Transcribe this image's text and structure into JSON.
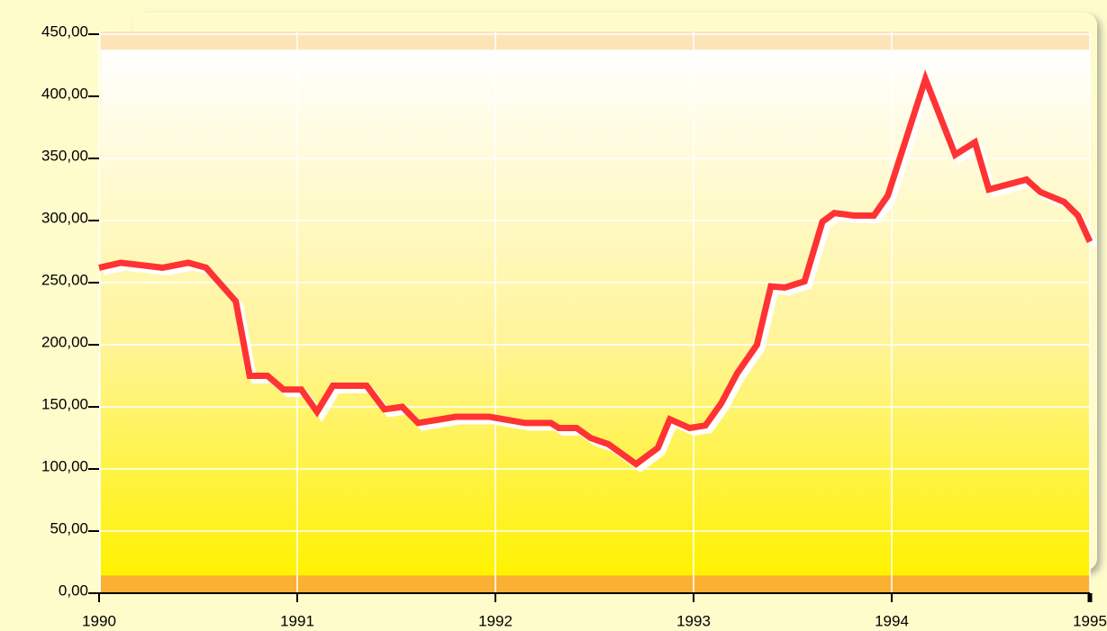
{
  "chart_data": {
    "type": "line",
    "x": [
      1990.0,
      1990.11,
      1990.32,
      1990.45,
      1990.54,
      1990.69,
      1990.76,
      1990.85,
      1990.93,
      1991.02,
      1991.1,
      1991.18,
      1991.35,
      1991.44,
      1991.53,
      1991.61,
      1991.8,
      1991.97,
      1992.15,
      1992.28,
      1992.32,
      1992.41,
      1992.48,
      1992.57,
      1992.71,
      1992.82,
      1992.88,
      1992.98,
      1993.06,
      1993.14,
      1993.22,
      1993.32,
      1993.39,
      1993.46,
      1993.56,
      1993.65,
      1993.71,
      1993.81,
      1993.91,
      1993.98,
      1994.17,
      1994.32,
      1994.42,
      1994.49,
      1994.68,
      1994.75,
      1994.87,
      1994.94,
      1995.0
    ],
    "series": [
      {
        "color": "#ff3333",
        "values": [
          262,
          266,
          262,
          266,
          262,
          235,
          175,
          175,
          164,
          164,
          146,
          167,
          167,
          148,
          150,
          137,
          142,
          142,
          137,
          137,
          133,
          133,
          125,
          120,
          104,
          117,
          140,
          133,
          135,
          153,
          177,
          200,
          247,
          246,
          251,
          299,
          306,
          304,
          304,
          320,
          414,
          353,
          363,
          325,
          333,
          323,
          315,
          304,
          283
        ]
      }
    ],
    "xlim": [
      1990,
      1995
    ],
    "xticks": [
      1990,
      1991,
      1992,
      1993,
      1994,
      1995
    ],
    "ylim": [
      0,
      450
    ],
    "yticks": [
      {
        "value": 0,
        "label": "0,00"
      },
      {
        "value": 50,
        "label": "50,00"
      },
      {
        "value": 100,
        "label": "100,00"
      },
      {
        "value": 150,
        "label": "150,00"
      },
      {
        "value": 200,
        "label": "200,00"
      },
      {
        "value": 250,
        "label": "250,00"
      },
      {
        "value": 300,
        "label": "300,00"
      },
      {
        "value": 350,
        "label": "350,00"
      },
      {
        "value": 400,
        "label": "400,00"
      },
      {
        "value": 450,
        "label": "450,00"
      }
    ],
    "grid": true
  }
}
